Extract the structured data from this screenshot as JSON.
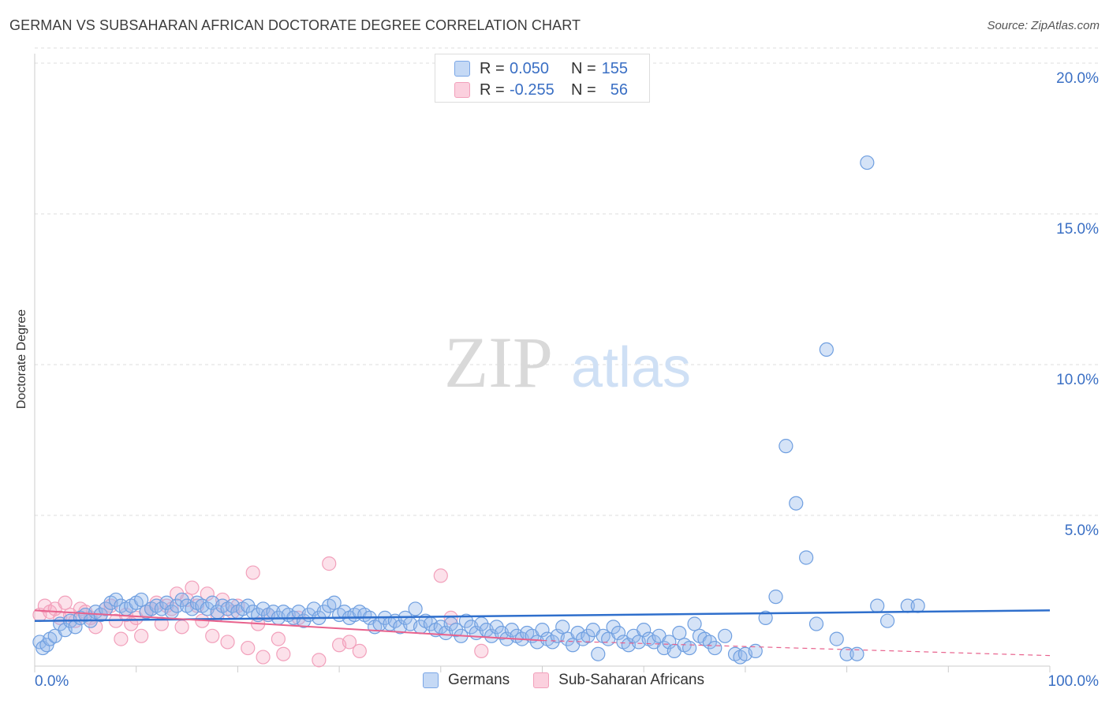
{
  "header": {
    "title": "GERMAN VS SUBSAHARAN AFRICAN DOCTORATE DEGREE CORRELATION CHART",
    "source": "Source: ZipAtlas.com"
  },
  "watermark": {
    "zip": "ZIP",
    "atlas": "atlas"
  },
  "legend": {
    "rows": [
      {
        "r_label": "R =",
        "r_value": "0.050",
        "n_label": "N =",
        "n_value": "155",
        "color": "#7aa6e6"
      },
      {
        "r_label": "R =",
        "r_value": "-0.255",
        "n_label": "N =",
        "n_value": "56",
        "color": "#f2a0bb"
      }
    ]
  },
  "bottom_legend": {
    "germans": "Germans",
    "subsaharan": "Sub-Saharan Africans"
  },
  "chart_data": {
    "type": "scatter",
    "title": "GERMAN VS SUBSAHARAN AFRICAN DOCTORATE DEGREE CORRELATION CHART",
    "xlabel": "",
    "ylabel": "Doctorate Degree",
    "xlim": [
      0,
      100
    ],
    "ylim": [
      0,
      20.5
    ],
    "x_tick_labels": [
      "0.0%",
      "100.0%"
    ],
    "y_tick_labels": [
      "5.0%",
      "10.0%",
      "15.0%",
      "20.0%"
    ],
    "y_ticks": [
      5,
      10,
      15,
      20
    ],
    "grid": true,
    "legend_position": "top-center",
    "colors": {
      "germans": "#7aa6e6",
      "germans_line": "#2f6fcc",
      "subsaharan": "#f2a0bb",
      "subsaharan_line": "#e8628d"
    },
    "series": [
      {
        "name": "Germans",
        "trend": {
          "x": [
            0,
            100
          ],
          "y": [
            1.5,
            1.85
          ]
        },
        "points": [
          [
            0.5,
            0.8
          ],
          [
            0.8,
            0.6
          ],
          [
            1.2,
            0.7
          ],
          [
            1.5,
            0.9
          ],
          [
            2,
            1.0
          ],
          [
            2.5,
            1.4
          ],
          [
            3,
            1.2
          ],
          [
            3.5,
            1.5
          ],
          [
            4,
            1.3
          ],
          [
            4.5,
            1.6
          ],
          [
            5,
            1.7
          ],
          [
            5.5,
            1.5
          ],
          [
            6,
            1.8
          ],
          [
            6.5,
            1.7
          ],
          [
            7,
            1.9
          ],
          [
            7.5,
            2.1
          ],
          [
            8,
            2.2
          ],
          [
            8.5,
            2.0
          ],
          [
            9,
            1.9
          ],
          [
            9.5,
            2.0
          ],
          [
            10,
            2.1
          ],
          [
            10.5,
            2.2
          ],
          [
            11,
            1.8
          ],
          [
            11.5,
            1.9
          ],
          [
            12,
            2.0
          ],
          [
            12.5,
            1.9
          ],
          [
            13,
            2.1
          ],
          [
            13.5,
            1.8
          ],
          [
            14,
            2.0
          ],
          [
            14.5,
            2.2
          ],
          [
            15,
            2.0
          ],
          [
            15.5,
            1.9
          ],
          [
            16,
            2.1
          ],
          [
            16.5,
            2.0
          ],
          [
            17,
            1.9
          ],
          [
            17.5,
            2.1
          ],
          [
            18,
            1.8
          ],
          [
            18.5,
            2.0
          ],
          [
            19,
            1.9
          ],
          [
            19.5,
            2.0
          ],
          [
            20,
            1.8
          ],
          [
            20.5,
            1.9
          ],
          [
            21,
            2.0
          ],
          [
            21.5,
            1.8
          ],
          [
            22,
            1.7
          ],
          [
            22.5,
            1.9
          ],
          [
            23,
            1.7
          ],
          [
            23.5,
            1.8
          ],
          [
            24,
            1.6
          ],
          [
            24.5,
            1.8
          ],
          [
            25,
            1.7
          ],
          [
            25.5,
            1.6
          ],
          [
            26,
            1.8
          ],
          [
            26.5,
            1.5
          ],
          [
            27,
            1.7
          ],
          [
            27.5,
            1.9
          ],
          [
            28,
            1.6
          ],
          [
            28.5,
            1.8
          ],
          [
            29,
            2.0
          ],
          [
            29.5,
            2.1
          ],
          [
            30,
            1.7
          ],
          [
            30.5,
            1.8
          ],
          [
            31,
            1.6
          ],
          [
            31.5,
            1.7
          ],
          [
            32,
            1.8
          ],
          [
            32.5,
            1.7
          ],
          [
            33,
            1.6
          ],
          [
            33.5,
            1.3
          ],
          [
            34,
            1.4
          ],
          [
            34.5,
            1.6
          ],
          [
            35,
            1.4
          ],
          [
            35.5,
            1.5
          ],
          [
            36,
            1.3
          ],
          [
            36.5,
            1.6
          ],
          [
            37,
            1.4
          ],
          [
            37.5,
            1.9
          ],
          [
            38,
            1.3
          ],
          [
            38.5,
            1.5
          ],
          [
            39,
            1.4
          ],
          [
            39.5,
            1.2
          ],
          [
            40,
            1.3
          ],
          [
            40.5,
            1.1
          ],
          [
            41,
            1.4
          ],
          [
            41.5,
            1.2
          ],
          [
            42,
            1.0
          ],
          [
            42.5,
            1.5
          ],
          [
            43,
            1.3
          ],
          [
            43.5,
            1.1
          ],
          [
            44,
            1.4
          ],
          [
            44.5,
            1.2
          ],
          [
            45,
            1.0
          ],
          [
            45.5,
            1.3
          ],
          [
            46,
            1.1
          ],
          [
            46.5,
            0.9
          ],
          [
            47,
            1.2
          ],
          [
            47.5,
            1.0
          ],
          [
            48,
            0.9
          ],
          [
            48.5,
            1.1
          ],
          [
            49,
            1.0
          ],
          [
            49.5,
            0.8
          ],
          [
            50,
            1.2
          ],
          [
            50.5,
            0.9
          ],
          [
            51,
            0.8
          ],
          [
            51.5,
            1.0
          ],
          [
            52,
            1.3
          ],
          [
            52.5,
            0.9
          ],
          [
            53,
            0.7
          ],
          [
            53.5,
            1.1
          ],
          [
            54,
            0.9
          ],
          [
            54.5,
            1.0
          ],
          [
            55,
            1.2
          ],
          [
            55.5,
            0.4
          ],
          [
            56,
            1.0
          ],
          [
            56.5,
            0.9
          ],
          [
            57,
            1.3
          ],
          [
            57.5,
            1.1
          ],
          [
            58,
            0.8
          ],
          [
            58.5,
            0.7
          ],
          [
            59,
            1.0
          ],
          [
            59.5,
            0.8
          ],
          [
            60,
            1.2
          ],
          [
            60.5,
            0.9
          ],
          [
            61,
            0.8
          ],
          [
            61.5,
            1.0
          ],
          [
            62,
            0.6
          ],
          [
            62.5,
            0.8
          ],
          [
            63,
            0.5
          ],
          [
            63.5,
            1.1
          ],
          [
            64,
            0.7
          ],
          [
            64.5,
            0.6
          ],
          [
            65,
            1.4
          ],
          [
            65.5,
            1.0
          ],
          [
            66,
            0.9
          ],
          [
            66.5,
            0.8
          ],
          [
            67,
            0.6
          ],
          [
            68,
            1.0
          ],
          [
            69,
            0.4
          ],
          [
            69.5,
            0.3
          ],
          [
            70,
            0.4
          ],
          [
            71,
            0.5
          ],
          [
            72,
            1.6
          ],
          [
            73,
            2.3
          ],
          [
            74,
            7.3
          ],
          [
            75,
            5.4
          ],
          [
            76,
            3.6
          ],
          [
            77,
            1.4
          ],
          [
            78,
            10.5
          ],
          [
            79,
            0.9
          ],
          [
            80,
            0.4
          ],
          [
            81,
            0.4
          ],
          [
            82,
            16.7
          ],
          [
            83,
            2.0
          ],
          [
            84,
            1.5
          ],
          [
            86,
            2.0
          ],
          [
            87,
            2.0
          ]
        ]
      },
      {
        "name": "Sub-Saharan Africans",
        "trend": {
          "x": [
            0,
            50
          ],
          "y": [
            1.85,
            0.85
          ]
        },
        "trend_dashed": {
          "x": [
            50,
            100
          ],
          "y": [
            0.85,
            0.35
          ]
        },
        "points": [
          [
            0.5,
            1.7
          ],
          [
            1,
            2.0
          ],
          [
            1.5,
            1.8
          ],
          [
            2,
            1.9
          ],
          [
            2.5,
            1.6
          ],
          [
            3,
            2.1
          ],
          [
            3.5,
            1.7
          ],
          [
            4,
            1.5
          ],
          [
            4.5,
            1.9
          ],
          [
            5,
            1.8
          ],
          [
            5.5,
            1.6
          ],
          [
            6,
            1.3
          ],
          [
            6.5,
            1.7
          ],
          [
            7,
            1.9
          ],
          [
            7.5,
            2.0
          ],
          [
            8,
            1.5
          ],
          [
            8.5,
            0.9
          ],
          [
            9,
            1.7
          ],
          [
            9.5,
            1.4
          ],
          [
            10,
            1.6
          ],
          [
            10.5,
            1.0
          ],
          [
            11,
            1.8
          ],
          [
            11.5,
            1.9
          ],
          [
            12,
            2.1
          ],
          [
            12.5,
            1.4
          ],
          [
            13,
            2.0
          ],
          [
            13.5,
            1.9
          ],
          [
            14,
            2.4
          ],
          [
            14.5,
            1.3
          ],
          [
            15,
            2.2
          ],
          [
            15.5,
            2.6
          ],
          [
            16,
            2.0
          ],
          [
            16.5,
            1.5
          ],
          [
            17,
            2.4
          ],
          [
            17.5,
            1.0
          ],
          [
            18,
            1.7
          ],
          [
            18.5,
            2.2
          ],
          [
            19,
            0.8
          ],
          [
            19.5,
            1.8
          ],
          [
            20,
            2.0
          ],
          [
            21,
            0.6
          ],
          [
            21.5,
            3.1
          ],
          [
            22,
            1.4
          ],
          [
            22.5,
            0.3
          ],
          [
            23,
            1.7
          ],
          [
            24,
            0.9
          ],
          [
            24.5,
            0.4
          ],
          [
            26,
            1.6
          ],
          [
            28,
            0.2
          ],
          [
            29,
            3.4
          ],
          [
            30,
            0.7
          ],
          [
            31,
            0.8
          ],
          [
            32,
            0.5
          ],
          [
            40,
            3.0
          ],
          [
            41,
            1.6
          ],
          [
            44,
            0.5
          ]
        ]
      }
    ]
  }
}
